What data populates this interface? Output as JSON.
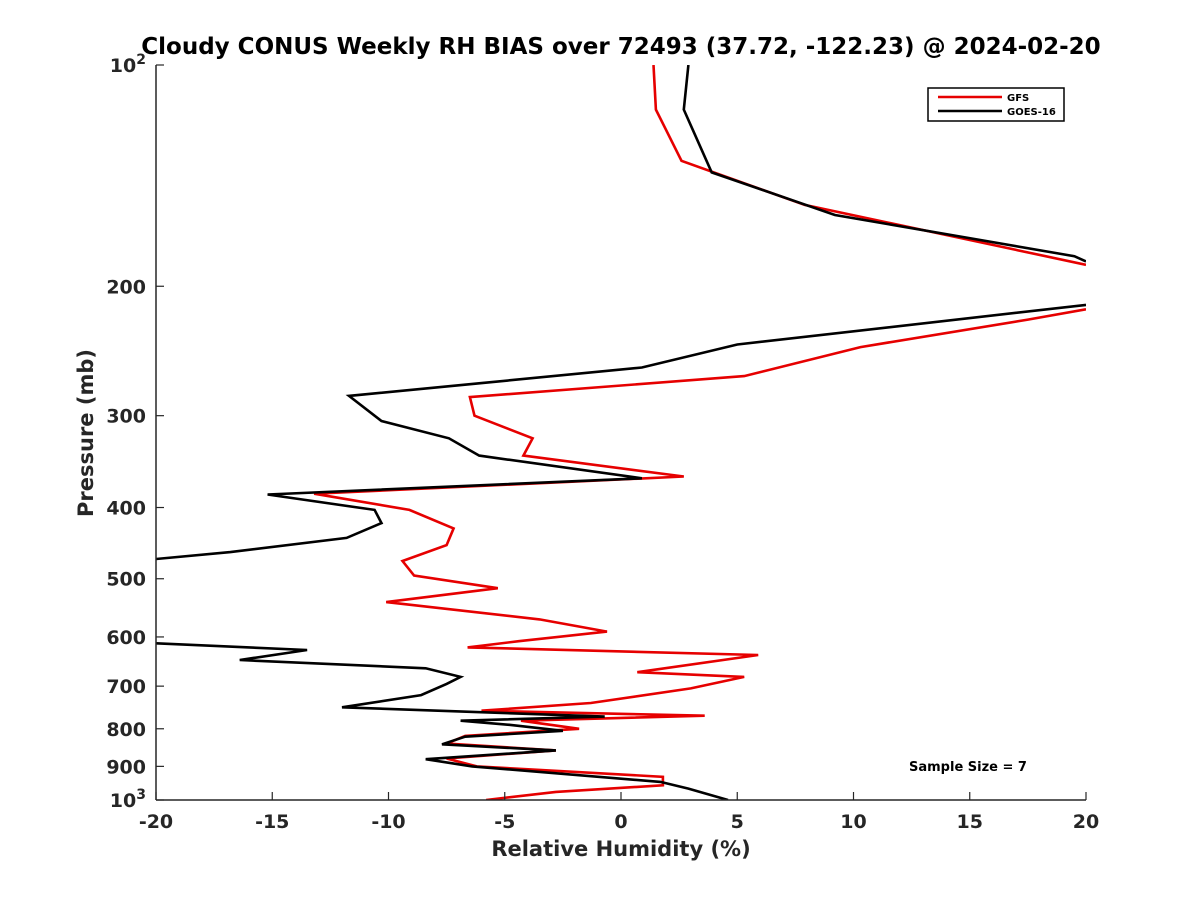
{
  "chart_data": {
    "type": "line",
    "title": "Cloudy CONUS Weekly RH BIAS over 72493 (37.72, -122.23) @ 2024-02-20",
    "xlabel": "Relative Humidity (%)",
    "ylabel": "Pressure (mb)",
    "xlim": [
      -20,
      20
    ],
    "ylim": [
      100,
      1000
    ],
    "y_scale": "log",
    "y_reversed": true,
    "grid": false,
    "legend_position": "top-right",
    "x_ticks": [
      "-20",
      "-15",
      "-10",
      "-5",
      "0",
      "5",
      "10",
      "15",
      "20"
    ],
    "y_ticks": [
      {
        "base": "10",
        "exp": "2",
        "value": 100
      },
      {
        "base": "200",
        "exp": "",
        "value": 200
      },
      {
        "base": "300",
        "exp": "",
        "value": 300
      },
      {
        "base": "400",
        "exp": "",
        "value": 400
      },
      {
        "base": "500",
        "exp": "",
        "value": 500
      },
      {
        "base": "600",
        "exp": "",
        "value": 600
      },
      {
        "base": "700",
        "exp": "",
        "value": 700
      },
      {
        "base": "800",
        "exp": "",
        "value": 800
      },
      {
        "base": "900",
        "exp": "",
        "value": 900
      },
      {
        "base": "10",
        "exp": "3",
        "value": 1000
      }
    ],
    "series": [
      {
        "name": "GFS",
        "color": "#e60000",
        "points": [
          [
            1.4,
            100
          ],
          [
            1.5,
            115
          ],
          [
            2.6,
            135
          ],
          [
            7.9,
            155
          ],
          [
            20.0,
            187
          ],
          [
            null,
            null
          ],
          [
            20.0,
            215
          ],
          [
            17.5,
            222
          ],
          [
            10.3,
            242
          ],
          [
            5.3,
            265
          ],
          [
            -6.5,
            283
          ],
          [
            -6.3,
            300
          ],
          [
            -3.8,
            322
          ],
          [
            -4.2,
            340
          ],
          [
            2.7,
            363
          ],
          [
            -13.2,
            383
          ],
          [
            -9.1,
            403
          ],
          [
            -7.2,
            427
          ],
          [
            -7.5,
            450
          ],
          [
            -9.4,
            473
          ],
          [
            -8.9,
            495
          ],
          [
            -5.3,
            515
          ],
          [
            -10.1,
            538
          ],
          [
            -3.5,
            568
          ],
          [
            -0.6,
            590
          ],
          [
            -4.4,
            608
          ],
          [
            -6.6,
            620
          ],
          [
            5.9,
            635
          ],
          [
            0.7,
            670
          ],
          [
            5.3,
            680
          ],
          [
            3.0,
            705
          ],
          [
            -1.3,
            738
          ],
          [
            -6.0,
            756
          ],
          [
            3.6,
            768
          ],
          [
            -4.3,
            780
          ],
          [
            -1.8,
            800
          ],
          [
            -6.7,
            818
          ],
          [
            -7.5,
            838
          ],
          [
            -2.8,
            856
          ],
          [
            -7.5,
            878
          ],
          [
            -6.2,
            900
          ],
          [
            1.8,
            930
          ],
          [
            1.8,
            955
          ],
          [
            -2.8,
            975
          ],
          [
            -5.8,
            1000
          ]
        ]
      },
      {
        "name": "GOES-16",
        "color": "#000000",
        "points": [
          [
            2.9,
            100
          ],
          [
            2.7,
            115
          ],
          [
            3.9,
            140
          ],
          [
            9.2,
            160
          ],
          [
            19.5,
            182
          ],
          [
            20.0,
            185
          ],
          [
            null,
            null
          ],
          [
            20.0,
            212
          ],
          [
            5.0,
            240
          ],
          [
            0.9,
            258
          ],
          [
            -11.7,
            282
          ],
          [
            -10.3,
            305
          ],
          [
            -7.4,
            322
          ],
          [
            -6.1,
            340
          ],
          [
            0.9,
            365
          ],
          [
            -15.2,
            384
          ],
          [
            -10.6,
            403
          ],
          [
            -10.3,
            420
          ],
          [
            -11.8,
            440
          ],
          [
            -16.8,
            460
          ],
          [
            -20.0,
            470
          ],
          [
            null,
            null
          ],
          [
            -20.0,
            612
          ],
          [
            -13.5,
            625
          ],
          [
            -16.4,
            645
          ],
          [
            -8.4,
            662
          ],
          [
            -6.9,
            680
          ],
          [
            -7.5,
            695
          ],
          [
            -8.6,
            720
          ],
          [
            -12.0,
            748
          ],
          [
            -0.7,
            770
          ],
          [
            -6.9,
            780
          ],
          [
            -4.8,
            790
          ],
          [
            -2.5,
            805
          ],
          [
            -6.7,
            820
          ],
          [
            -7.7,
            840
          ],
          [
            -2.8,
            856
          ],
          [
            -8.4,
            880
          ],
          [
            -6.4,
            900
          ],
          [
            1.7,
            945
          ],
          [
            2.9,
            965
          ],
          [
            4.6,
            1000
          ]
        ]
      }
    ],
    "annotation": "Sample Size = 7"
  }
}
